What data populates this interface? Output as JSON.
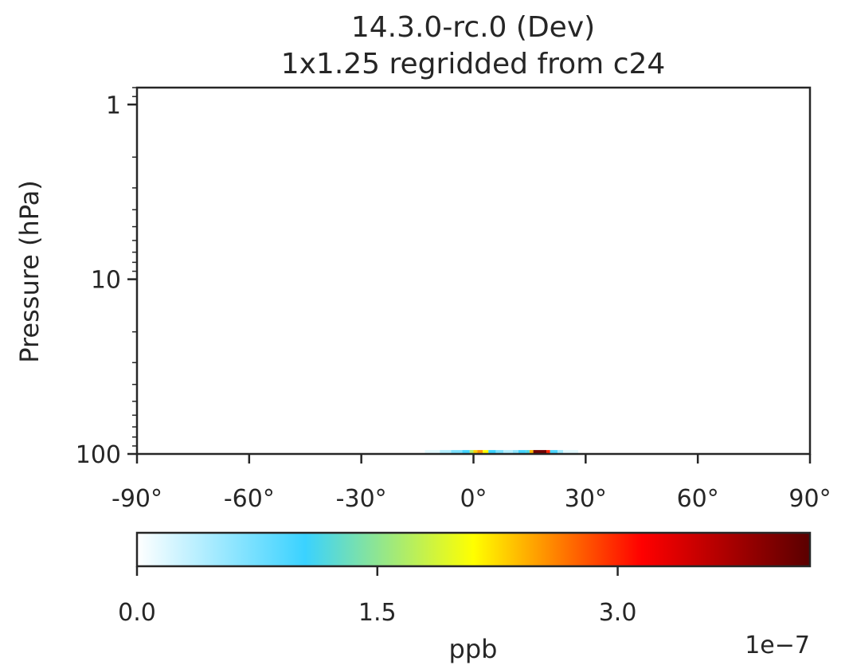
{
  "chart_data": [
    {
      "type": "heatmap",
      "title": "14.3.0-rc.0 (Dev)",
      "subtitle": "1x1.25 regridded from c24",
      "xlabel": "",
      "ylabel": "Pressure (hPa)",
      "x_scale": "linear",
      "y_scale": "log",
      "y_inverted": true,
      "xlim": [
        -90,
        90
      ],
      "ylim": [
        100,
        0.8
      ],
      "x_ticks": [
        -90,
        -60,
        -30,
        0,
        30,
        60,
        90
      ],
      "x_tick_labels": [
        "-90°",
        "-60°",
        "-30°",
        "0°",
        "30°",
        "60°",
        "90°"
      ],
      "y_ticks": [
        1,
        10,
        100
      ],
      "y_tick_labels": [
        "1",
        "10",
        "100"
      ],
      "grid": false,
      "colormap": [
        "#ffffff",
        "#3ad2ff",
        "#ffff00",
        "#ff0000",
        "#5a0000"
      ],
      "value_range": [
        0,
        4.2e-07
      ],
      "lowest_level": {
        "pressure_top": 95,
        "pressure_bottom": 100,
        "cells": [
          {
            "lat_start": -13,
            "lat_end": -9,
            "value": 1.5e-08
          },
          {
            "lat_start": -9,
            "lat_end": -6,
            "value": 4e-08
          },
          {
            "lat_start": -6,
            "lat_end": -3,
            "value": 7e-08
          },
          {
            "lat_start": -3,
            "lat_end": -1,
            "value": 1e-07
          },
          {
            "lat_start": -1,
            "lat_end": 0,
            "value": 1.7e-07
          },
          {
            "lat_start": 0,
            "lat_end": 1,
            "value": 2.3e-07
          },
          {
            "lat_start": 1,
            "lat_end": 2.5,
            "value": 2.55e-07
          },
          {
            "lat_start": 2.5,
            "lat_end": 4,
            "value": 2.1e-07
          },
          {
            "lat_start": 4,
            "lat_end": 6,
            "value": 1.05e-07
          },
          {
            "lat_start": 6,
            "lat_end": 8,
            "value": 7e-08
          },
          {
            "lat_start": 8,
            "lat_end": 10.5,
            "value": 4e-08
          },
          {
            "lat_start": 10.5,
            "lat_end": 12,
            "value": 6e-08
          },
          {
            "lat_start": 12,
            "lat_end": 14,
            "value": 1e-07
          },
          {
            "lat_start": 14,
            "lat_end": 15,
            "value": 1.15e-07
          },
          {
            "lat_start": 15,
            "lat_end": 16,
            "value": 2.4e-07
          },
          {
            "lat_start": 16,
            "lat_end": 19.5,
            "value": 4.05e-07
          },
          {
            "lat_start": 19.5,
            "lat_end": 20.5,
            "value": 3e-07
          },
          {
            "lat_start": 20.5,
            "lat_end": 22.5,
            "value": 9.5e-08
          },
          {
            "lat_start": 22.5,
            "lat_end": 24,
            "value": 5e-08
          },
          {
            "lat_start": 24,
            "lat_end": 28,
            "value": 1.5e-08
          }
        ]
      }
    },
    {
      "type": "colorbar",
      "xlabel": "ppb",
      "multiplier": "1e−7",
      "range": [
        0,
        4.2e-07
      ],
      "ticks": [
        0,
        1.5e-07,
        3e-07
      ],
      "tick_labels": [
        "0.0",
        "1.5",
        "3.0"
      ]
    }
  ]
}
